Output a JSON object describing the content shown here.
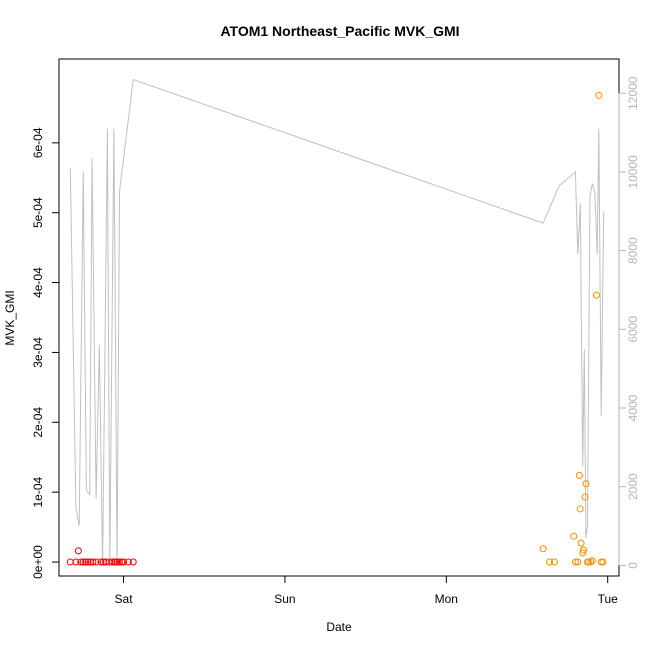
{
  "chart_data": {
    "type": "scatter",
    "title": "ATOM1 Northeast_Pacific MVK_GMI",
    "xlabel": "Date",
    "ylabel": "MVK_GMI",
    "x_ticks": [
      {
        "label": "Sat",
        "value": 1.0
      },
      {
        "label": "Sun",
        "value": 2.0
      },
      {
        "label": "Mon",
        "value": 3.0
      },
      {
        "label": "Tue",
        "value": 4.0
      }
    ],
    "y_ticks_left": [
      {
        "label": "0e+00",
        "value": 0
      },
      {
        "label": "1e-04",
        "value": 0.0001
      },
      {
        "label": "2e-04",
        "value": 0.0002
      },
      {
        "label": "3e-04",
        "value": 0.0003
      },
      {
        "label": "4e-04",
        "value": 0.0004
      },
      {
        "label": "5e-04",
        "value": 0.0005
      },
      {
        "label": "6e-04",
        "value": 0.0006
      }
    ],
    "y_ticks_right": [
      {
        "label": "0",
        "value": 0
      },
      {
        "label": "2000",
        "value": 2000
      },
      {
        "label": "4000",
        "value": 4000
      },
      {
        "label": "6000",
        "value": 6000
      },
      {
        "label": "8000",
        "value": 8000
      },
      {
        "label": "10000",
        "value": 10000
      },
      {
        "label": "12000",
        "value": 12000
      }
    ],
    "xlim": [
      0.6,
      4.07
    ],
    "ylim_left": [
      -2e-05,
      0.00072
    ],
    "ylim_right": [
      -270,
      12870
    ],
    "series": [
      {
        "color": "#ff0000",
        "axis": "left",
        "points": [
          [
            0.67,
            0.0
          ],
          [
            0.705,
            0.0
          ],
          [
            0.72,
            1.6e-05
          ],
          [
            0.735,
            0.0
          ],
          [
            0.75,
            0.0
          ],
          [
            0.765,
            0.0
          ],
          [
            0.78,
            0.0
          ],
          [
            0.795,
            0.0
          ],
          [
            0.81,
            0.0
          ],
          [
            0.83,
            0.0
          ],
          [
            0.86,
            0.0
          ],
          [
            0.875,
            0.0
          ],
          [
            0.89,
            0.0
          ],
          [
            0.91,
            0.0
          ],
          [
            0.93,
            0.0
          ],
          [
            0.945,
            0.0
          ],
          [
            0.96,
            0.0
          ],
          [
            0.975,
            0.0
          ],
          [
            0.99,
            0.0
          ],
          [
            1.0,
            0.0
          ],
          [
            1.03,
            0.0
          ],
          [
            1.06,
            0.0
          ],
          [
            0.95,
            0.0
          ]
        ]
      },
      {
        "color": "#ff8c00",
        "axis": "left",
        "points": [
          [
            3.6,
            1.9e-05
          ],
          [
            3.64,
            0.0
          ],
          [
            3.67,
            0.0
          ],
          [
            3.79,
            3.7e-05
          ],
          [
            3.8,
            0.0
          ],
          [
            3.815,
            0.0
          ],
          [
            3.825,
            0.000124
          ],
          [
            3.83,
            7.6e-05
          ],
          [
            3.835,
            2.7e-05
          ],
          [
            3.845,
            1.3e-05
          ],
          [
            3.85,
            1.7e-05
          ],
          [
            3.86,
            9.3e-05
          ],
          [
            3.865,
            0.000112
          ],
          [
            3.875,
            0.0
          ],
          [
            3.88,
            0.0
          ],
          [
            3.895,
            0.0
          ],
          [
            3.905,
            2e-06
          ],
          [
            3.93,
            0.000382
          ],
          [
            3.945,
            0.000668
          ],
          [
            3.96,
            0.0
          ],
          [
            3.97,
            0.0
          ]
        ]
      },
      {
        "color": "#c0c0c0",
        "axis": "right",
        "type": "line",
        "points": [
          [
            0.67,
            10100
          ],
          [
            0.705,
            1500
          ],
          [
            0.725,
            1000
          ],
          [
            0.75,
            10000
          ],
          [
            0.77,
            1900
          ],
          [
            0.79,
            1800
          ],
          [
            0.805,
            10350
          ],
          [
            0.83,
            1700
          ],
          [
            0.85,
            5600
          ],
          [
            0.87,
            0
          ],
          [
            0.9,
            11100
          ],
          [
            0.915,
            0
          ],
          [
            0.94,
            11100
          ],
          [
            0.96,
            0
          ],
          [
            0.975,
            9500
          ],
          [
            1.0,
            10350
          ],
          [
            1.06,
            12350
          ],
          [
            3.6,
            8700
          ],
          [
            3.7,
            9650
          ],
          [
            3.8,
            10000
          ],
          [
            3.815,
            7900
          ],
          [
            3.83,
            9200
          ],
          [
            3.845,
            2500
          ],
          [
            3.855,
            5500
          ],
          [
            3.865,
            700
          ],
          [
            3.875,
            1000
          ],
          [
            3.89,
            9400
          ],
          [
            3.905,
            9700
          ],
          [
            3.92,
            9500
          ],
          [
            3.935,
            7900
          ],
          [
            3.945,
            11100
          ],
          [
            3.96,
            3800
          ],
          [
            3.975,
            9000
          ]
        ]
      }
    ]
  }
}
